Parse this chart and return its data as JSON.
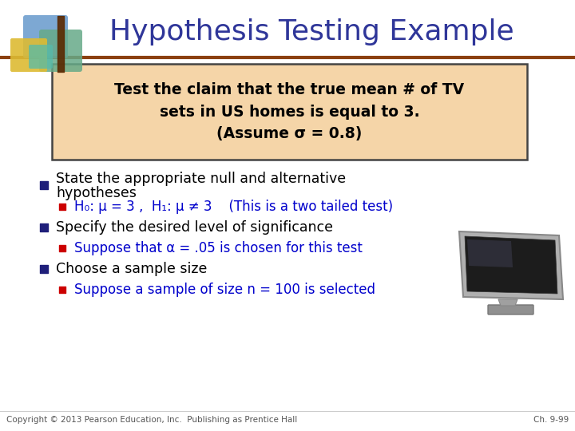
{
  "title": "Hypothesis Testing Example",
  "title_color": "#2F3699",
  "title_fontsize": 26,
  "bg_color": "#FFFFFF",
  "box_text_line1": "Test the claim that the true mean # of TV",
  "box_text_line2": "sets in US homes is equal to 3.",
  "box_text_line3": "(Assume σ = 0.8)",
  "box_bg_color": "#F5D5A8",
  "box_border_color": "#444444",
  "bullet_color": "#1F1F7A",
  "subbullet_color": "#CC0000",
  "blue_text_color": "#0000CC",
  "line_color": "#8B4010",
  "copyright_text": "Copyright © 2013 Pearson Education, Inc.  Publishing as Prentice Hall",
  "chapter_text": "Ch. 9-99",
  "footer_color": "#555555",
  "footer_fontsize": 7.5,
  "bullet1_line1": "State the appropriate null and alternative",
  "bullet1_line2": "hypotheses",
  "sub1_text": "H₀: μ = 3 ,  H₁: μ ≠ 3    (This is a two tailed test)",
  "bullet2_text": "Specify the desired level of significance",
  "sub2_text": "Suppose that α = .05 is chosen for this test",
  "bullet3_text": "Choose a sample size",
  "sub3_text": "Suppose a sample of size n = 100 is selected",
  "logo_blue": "#6699CC",
  "logo_green": "#66AA88",
  "logo_yellow": "#DDBB33",
  "logo_teal": "#55BBAA"
}
